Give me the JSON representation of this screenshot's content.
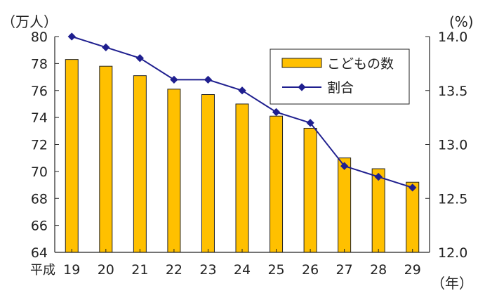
{
  "chart_data": {
    "type": "bar",
    "categories": [
      "19",
      "20",
      "21",
      "22",
      "23",
      "24",
      "25",
      "26",
      "27",
      "28",
      "29"
    ],
    "x_prefix": "平成",
    "x_unit": "（年）",
    "y_left_unit": "（万人）",
    "y_right_unit": "(%)",
    "ylim_left": [
      64,
      80
    ],
    "ylim_right": [
      12.0,
      14.0
    ],
    "left_ticks": [
      64,
      66,
      68,
      70,
      72,
      74,
      76,
      78,
      80
    ],
    "right_ticks": [
      "12.0",
      "12.5",
      "13.0",
      "13.5",
      "14.0"
    ],
    "series": [
      {
        "name": "こどもの数",
        "type": "bar",
        "axis": "left",
        "color": "#FFC000",
        "values": [
          78.3,
          77.8,
          77.1,
          76.1,
          75.7,
          75.0,
          74.1,
          73.2,
          71.0,
          70.2,
          69.2
        ]
      },
      {
        "name": "割合",
        "type": "line",
        "axis": "right",
        "color": "#1F1F8F",
        "values": [
          14.0,
          13.9,
          13.8,
          13.6,
          13.6,
          13.5,
          13.3,
          13.2,
          12.8,
          12.7,
          12.6
        ]
      }
    ],
    "legend": {
      "position": "top-right"
    },
    "grid": false
  }
}
